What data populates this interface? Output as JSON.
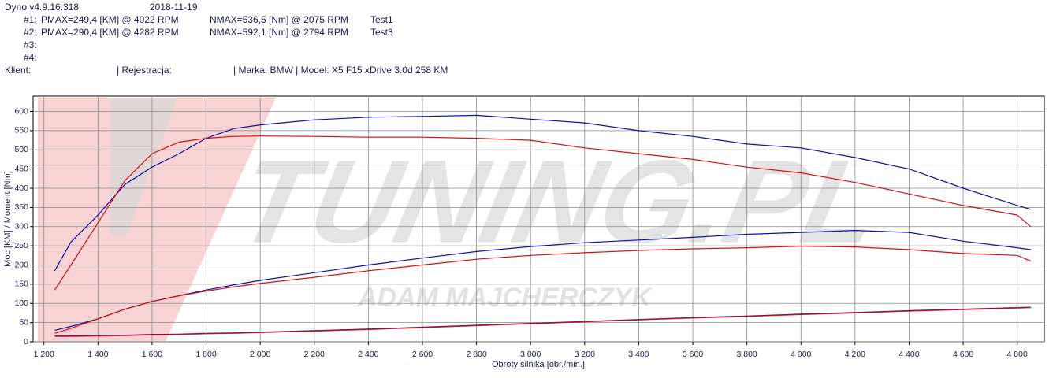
{
  "header": {
    "version": "Dyno v4.9.16.318",
    "date": "2018-11-19",
    "runs": [
      {
        "id": "#1:",
        "pmax": "PMAX=249,4 [KM] @ 4022 RPM",
        "nmax": "NMAX=536,5 [Nm] @ 2075 RPM",
        "test": "Test1"
      },
      {
        "id": "#2:",
        "pmax": "PMAX=290,4 [KM] @ 4282 RPM",
        "nmax": "NMAX=592,1 [Nm] @ 2794 RPM",
        "test": "Test3"
      },
      {
        "id": "#3:"
      },
      {
        "id": "#4:"
      }
    ],
    "client": "Klient:",
    "registration": "| Rejestracja:",
    "vehicle": "| Marka: BMW | Model: X5 F15 xDrive 3.0d 258 KM"
  },
  "watermark": {
    "logo": "TUNING.PL",
    "author": "ADAM MAJCHERCZYK"
  },
  "chart_data": {
    "type": "line",
    "xlabel": "Obroty silnika [obr./min.]",
    "ylabel": "Moc [KM] / Moment [Nm]",
    "x": [
      1240,
      1300,
      1400,
      1500,
      1600,
      1700,
      1800,
      1900,
      2000,
      2200,
      2400,
      2600,
      2800,
      3000,
      3200,
      3400,
      3600,
      3800,
      4000,
      4200,
      4400,
      4600,
      4800,
      4850
    ],
    "series": [
      {
        "color": "#1010a0",
        "values": [
          185,
          260,
          330,
          410,
          455,
          490,
          530,
          555,
          565,
          578,
          585,
          587,
          590,
          580,
          570,
          550,
          535,
          515,
          505,
          480,
          450,
          400,
          355,
          345
        ]
      },
      {
        "color": "#d01010",
        "values": [
          135,
          200,
          310,
          420,
          490,
          520,
          530,
          535,
          536,
          535,
          533,
          533,
          530,
          525,
          505,
          490,
          475,
          455,
          440,
          415,
          385,
          355,
          330,
          300
        ]
      },
      {
        "color": "#1010a0",
        "values": [
          30,
          40,
          60,
          85,
          105,
          120,
          135,
          148,
          160,
          180,
          200,
          218,
          235,
          248,
          258,
          265,
          272,
          280,
          285,
          290,
          285,
          262,
          245,
          240
        ]
      },
      {
        "color": "#d01010",
        "values": [
          22,
          35,
          60,
          85,
          105,
          120,
          132,
          143,
          152,
          168,
          185,
          200,
          215,
          225,
          232,
          238,
          242,
          245,
          249,
          247,
          240,
          230,
          225,
          210
        ]
      },
      {
        "color": "#1010a0",
        "values": [
          15,
          15,
          16,
          17,
          19,
          20,
          22,
          23,
          25,
          29,
          33,
          38,
          43,
          48,
          53,
          58,
          63,
          67,
          72,
          76,
          81,
          85,
          89,
          90
        ]
      },
      {
        "color": "#d01010",
        "values": [
          14,
          14,
          15,
          16,
          18,
          19,
          21,
          22,
          24,
          28,
          32,
          37,
          42,
          47,
          52,
          57,
          62,
          66,
          71,
          75,
          80,
          84,
          88,
          89
        ]
      }
    ],
    "xlim": [
      1160,
      4900
    ],
    "ylim": [
      0,
      640
    ],
    "xticks": [
      {
        "value": 1200,
        "label": "1 200"
      },
      {
        "value": 1400,
        "label": "1 400"
      },
      {
        "value": 1600,
        "label": "1 600"
      },
      {
        "value": 1800,
        "label": "1 800"
      },
      {
        "value": 2000,
        "label": "2 000"
      },
      {
        "value": 2200,
        "label": "2 200"
      },
      {
        "value": 2400,
        "label": "2 400"
      },
      {
        "value": 2600,
        "label": "2 600"
      },
      {
        "value": 2800,
        "label": "2 800"
      },
      {
        "value": 3000,
        "label": "3 000"
      },
      {
        "value": 3200,
        "label": "3 200"
      },
      {
        "value": 3400,
        "label": "3 400"
      },
      {
        "value": 3600,
        "label": "3 600"
      },
      {
        "value": 3800,
        "label": "3 800"
      },
      {
        "value": 4000,
        "label": "4 000"
      },
      {
        "value": 4200,
        "label": "4 200"
      },
      {
        "value": 4400,
        "label": "4 400"
      },
      {
        "value": 4600,
        "label": "4 600"
      },
      {
        "value": 4800,
        "label": "4 800"
      }
    ],
    "yticks": [
      0,
      50,
      100,
      150,
      200,
      250,
      300,
      350,
      400,
      450,
      500,
      550,
      600
    ],
    "grid": true
  }
}
